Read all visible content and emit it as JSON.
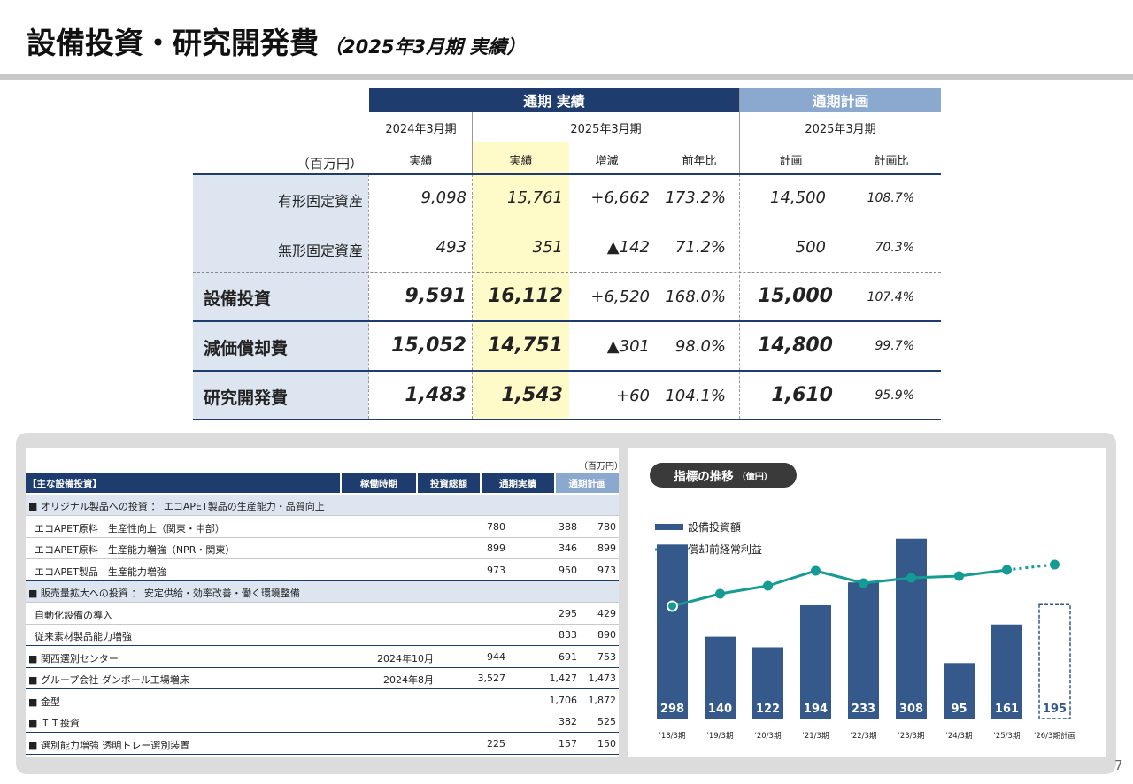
{
  "header": {
    "title": "設備投資・研究開発費",
    "subtitle": "（2025年3月期 実績）"
  },
  "summary": {
    "group_actual": "通期 実績",
    "group_plan": "通期計画",
    "fy_prev": "2024年3月期",
    "fy_cur": "2025年3月期",
    "fy_plan": "2025年3月期",
    "unit": "（百万円）",
    "col_prev": "実績",
    "col_cur": "実績",
    "col_diff": "増減",
    "col_yoy": "前年比",
    "col_plan": "計画",
    "col_ratio": "計画比",
    "rows": [
      {
        "label": "有形固定資産",
        "prev": "9,098",
        "cur": "15,761",
        "diff": "+6,662",
        "yoy": "173.2%",
        "plan": "14,500",
        "ratio": "108.7%"
      },
      {
        "label": "無形固定資産",
        "prev": "493",
        "cur": "351",
        "diff": "▲142",
        "yoy": "71.2%",
        "plan": "500",
        "ratio": "70.3%"
      },
      {
        "label": "設備投資",
        "prev": "9,591",
        "cur": "16,112",
        "diff": "+6,520",
        "yoy": "168.0%",
        "plan": "15,000",
        "ratio": "107.4%"
      },
      {
        "label": "減価償却費",
        "prev": "15,052",
        "cur": "14,751",
        "diff": "▲301",
        "yoy": "98.0%",
        "plan": "14,800",
        "ratio": "99.7%"
      },
      {
        "label": "研究開発費",
        "prev": "1,483",
        "cur": "1,543",
        "diff": "+60",
        "yoy": "104.1%",
        "plan": "1,610",
        "ratio": "95.9%"
      }
    ]
  },
  "investments": {
    "unit": "（百万円）",
    "headers": {
      "name": "【主な設備投資】",
      "period": "稼働時期",
      "total": "投資総額",
      "actual": "通期実績",
      "plan": "通期計画"
    },
    "rows": [
      {
        "type": "section",
        "name": "■ オリジナル製品への投資 ： エコAPET製品の生産能力・品質向上",
        "period": "",
        "total": "",
        "actual": "",
        "plan": ""
      },
      {
        "type": "item",
        "name": "エコAPET原料　生産性向上（関東・中部）",
        "period": "",
        "total": "780",
        "actual": "388",
        "plan": "780"
      },
      {
        "type": "item",
        "name": "エコAPET原料　生産能力増強（NPR・関東）",
        "period": "",
        "total": "899",
        "actual": "346",
        "plan": "899"
      },
      {
        "type": "item",
        "name": "エコAPET製品　生産能力増強",
        "period": "",
        "total": "973",
        "actual": "950",
        "plan": "973"
      },
      {
        "type": "section",
        "name": "■ 販売量拡大への投資 ： 安定供給・効率改善・働く環境整備",
        "period": "",
        "total": "",
        "actual": "",
        "plan": ""
      },
      {
        "type": "item",
        "name": "自動化設備の導入",
        "period": "",
        "total": "",
        "actual": "295",
        "plan": "429"
      },
      {
        "type": "item",
        "name": "従来素材製品能力増強",
        "period": "",
        "total": "",
        "actual": "833",
        "plan": "890"
      },
      {
        "type": "section",
        "name": "■ 関西選別センター",
        "period": "2024年10月",
        "total": "944",
        "actual": "691",
        "plan": "753"
      },
      {
        "type": "section",
        "name": "■ グループ会社 ダンボール工場増床",
        "period": "2024年8月",
        "total": "3,527",
        "actual": "1,427",
        "plan": "1,473"
      },
      {
        "type": "section",
        "name": "■ 金型",
        "period": "",
        "total": "",
        "actual": "1,706",
        "plan": "1,872"
      },
      {
        "type": "section",
        "name": "■ ＩＴ投資",
        "period": "",
        "total": "",
        "actual": "382",
        "plan": "525"
      },
      {
        "type": "section",
        "name": "■ 選別能力増強 透明トレー選別装置",
        "period": "",
        "total": "225",
        "actual": "157",
        "plan": "150"
      }
    ]
  },
  "chart_panel": {
    "title": "指標の推移",
    "unit": "（億円）"
  },
  "chart_data": {
    "type": "bar",
    "categories": [
      "'18/3期",
      "'19/3期",
      "'20/3期",
      "'21/3期",
      "'22/3期",
      "'23/3期",
      "'24/3期",
      "'25/3期",
      "'26/3期計画"
    ],
    "series": [
      {
        "name": "設備投資額",
        "values": [
          298,
          140,
          122,
          194,
          233,
          308,
          95,
          161,
          195
        ],
        "color": "#34598a"
      },
      {
        "name": "償却前経常利益",
        "values": [
          null,
          null,
          null,
          null,
          null,
          null,
          null,
          null,
          null
        ],
        "color": "#139b94"
      }
    ],
    "last_is_plan": true,
    "legend_position": "top-left",
    "grid": false
  },
  "page_number": "7"
}
